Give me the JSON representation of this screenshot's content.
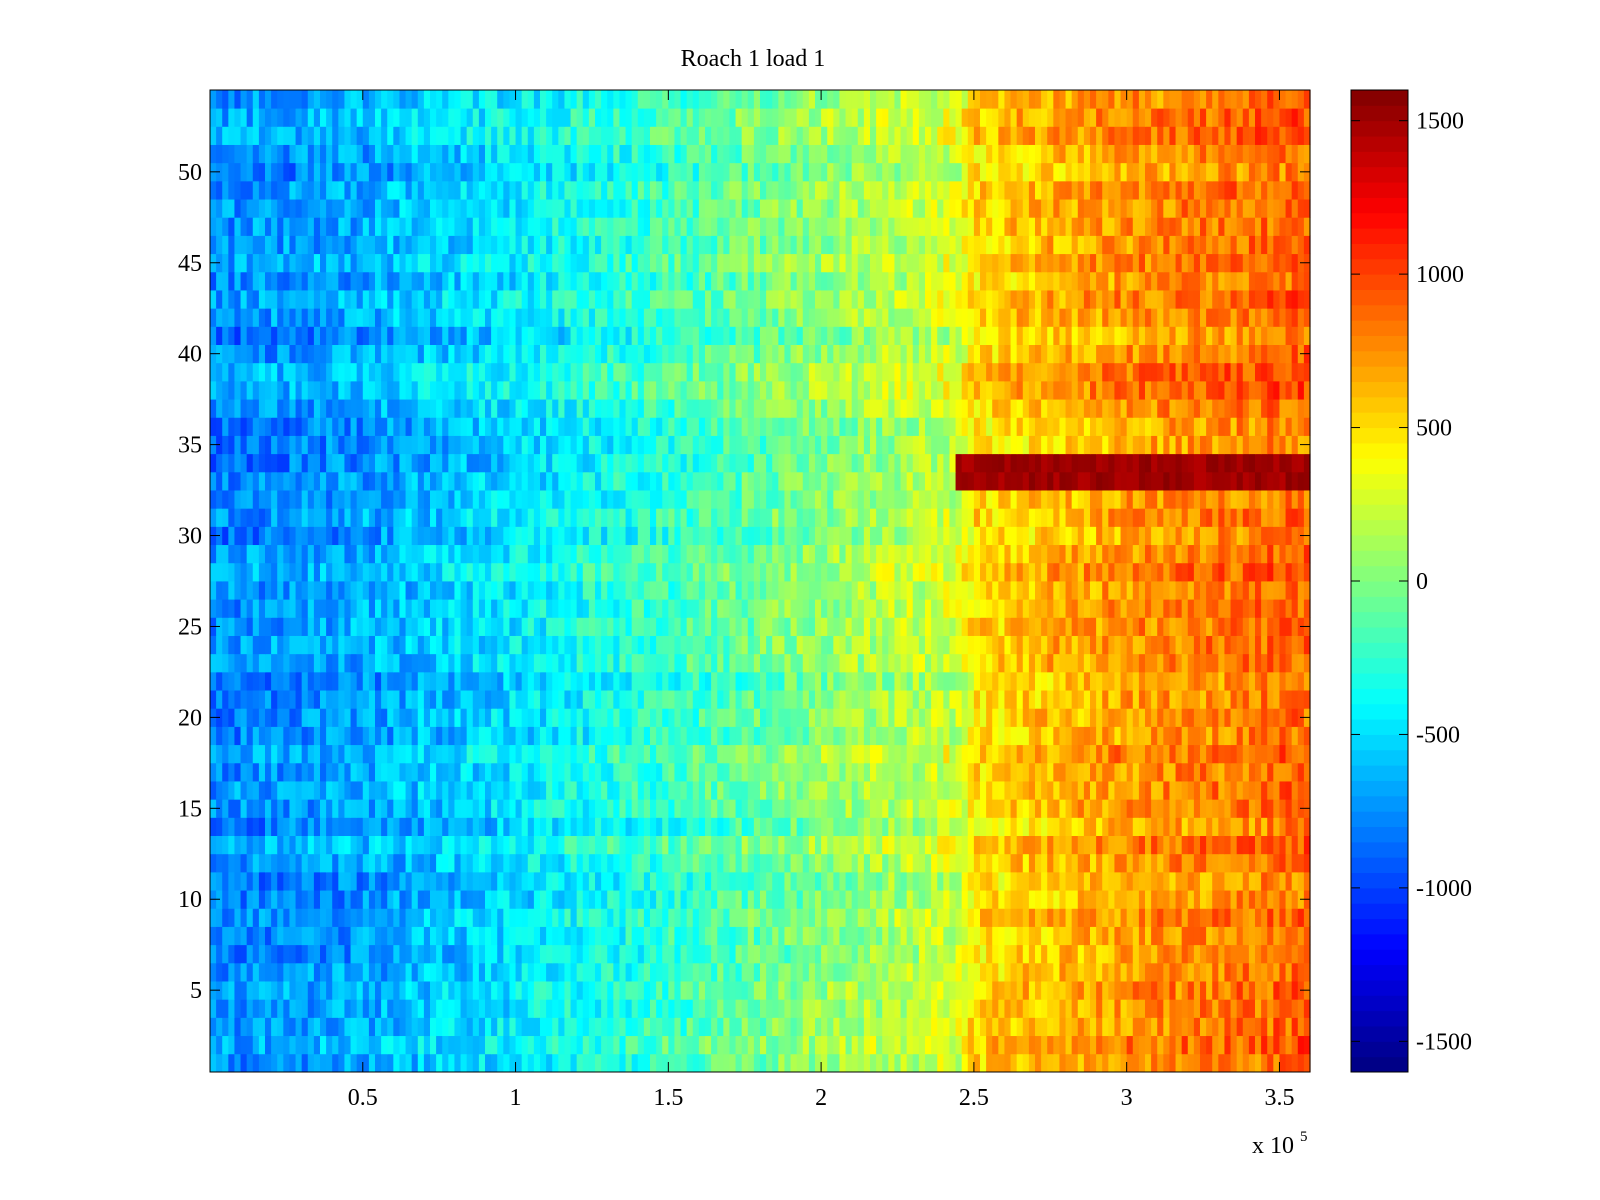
{
  "chart_data": {
    "type": "heatmap",
    "title": "Roach 1 load 1",
    "xlabel": "",
    "ylabel": "",
    "x_exponent_label": "x 10",
    "x_exponent_power": "5",
    "x_scale_factor": 100000,
    "xlim": [
      0,
      360000
    ],
    "ylim": [
      0.5,
      54.5
    ],
    "rows": 54,
    "x_ticks": [
      {
        "value": 50000,
        "label": "0.5"
      },
      {
        "value": 100000,
        "label": "1"
      },
      {
        "value": 150000,
        "label": "1.5"
      },
      {
        "value": 200000,
        "label": "2"
      },
      {
        "value": 250000,
        "label": "2.5"
      },
      {
        "value": 300000,
        "label": "3"
      },
      {
        "value": 350000,
        "label": "3.5"
      }
    ],
    "y_ticks": [
      {
        "value": 5,
        "label": "5"
      },
      {
        "value": 10,
        "label": "10"
      },
      {
        "value": 15,
        "label": "15"
      },
      {
        "value": 20,
        "label": "20"
      },
      {
        "value": 25,
        "label": "25"
      },
      {
        "value": 30,
        "label": "30"
      },
      {
        "value": 35,
        "label": "35"
      },
      {
        "value": 40,
        "label": "40"
      },
      {
        "value": 45,
        "label": "45"
      },
      {
        "value": 50,
        "label": "50"
      }
    ],
    "trend_profile": [
      {
        "x": 0,
        "value": -780
      },
      {
        "x": 50000,
        "value": -680
      },
      {
        "x": 100000,
        "value": -470
      },
      {
        "x": 150000,
        "value": -230
      },
      {
        "x": 200000,
        "value": 40
      },
      {
        "x": 245000,
        "value": 250
      },
      {
        "x": 250000,
        "value": 500
      },
      {
        "x": 300000,
        "value": 720
      },
      {
        "x": 360000,
        "value": 880
      }
    ],
    "saturated_band": {
      "y_start": 33,
      "y_end": 34,
      "x_start": 245000,
      "x_end": 360000,
      "value": 1500
    },
    "colorbar": {
      "colormap": "jet",
      "clim": [
        -1600,
        1600
      ],
      "ticks": [
        {
          "value": 1500,
          "label": "1500"
        },
        {
          "value": 1000,
          "label": "1000"
        },
        {
          "value": 500,
          "label": "500"
        },
        {
          "value": 0,
          "label": "0"
        },
        {
          "value": -500,
          "label": "-500"
        },
        {
          "value": -1000,
          "label": "-1000"
        },
        {
          "value": -1500,
          "label": "-1500"
        }
      ]
    },
    "grid": false
  }
}
